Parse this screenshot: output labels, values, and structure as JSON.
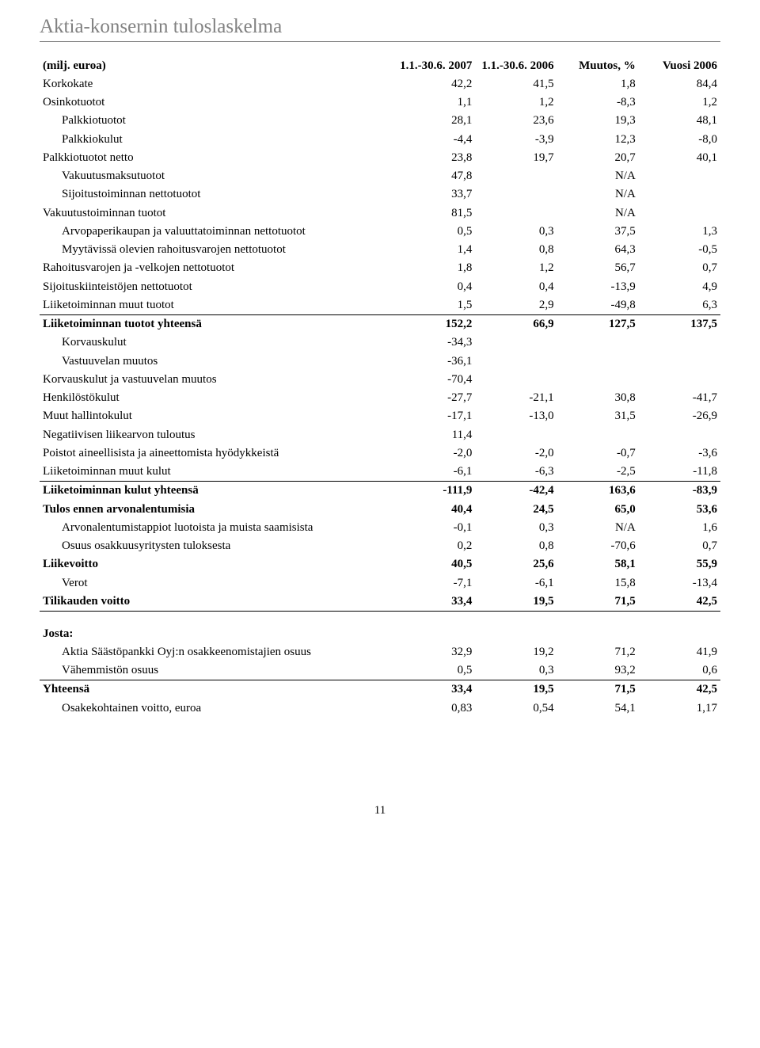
{
  "title": "Aktia-konsernin tuloslaskelma",
  "page_number": "11",
  "header": {
    "label": "(milj. euroa)",
    "col1": "1.1.-30.6. 2007",
    "col2": "1.1.-30.6. 2006",
    "col3": "Muutos, %",
    "col4": "Vuosi 2006"
  },
  "rows": [
    {
      "label": "Korkokate",
      "indent": 0,
      "bold": false,
      "c1": "42,2",
      "c2": "41,5",
      "c3": "1,8",
      "c4": "84,4"
    },
    {
      "label": "Osinkotuotot",
      "indent": 0,
      "bold": false,
      "c1": "1,1",
      "c2": "1,2",
      "c3": "-8,3",
      "c4": "1,2"
    },
    {
      "label": "Palkkiotuotot",
      "indent": 1,
      "bold": false,
      "c1": "28,1",
      "c2": "23,6",
      "c3": "19,3",
      "c4": "48,1"
    },
    {
      "label": "Palkkiokulut",
      "indent": 1,
      "bold": false,
      "c1": "-4,4",
      "c2": "-3,9",
      "c3": "12,3",
      "c4": "-8,0"
    },
    {
      "label": "Palkkiotuotot netto",
      "indent": 0,
      "bold": false,
      "c1": "23,8",
      "c2": "19,7",
      "c3": "20,7",
      "c4": "40,1"
    },
    {
      "label": "Vakuutusmaksutuotot",
      "indent": 1,
      "bold": false,
      "c1": "47,8",
      "c2": "",
      "c3": "N/A",
      "c4": ""
    },
    {
      "label": "Sijoitustoiminnan nettotuotot",
      "indent": 1,
      "bold": false,
      "c1": "33,7",
      "c2": "",
      "c3": "N/A",
      "c4": ""
    },
    {
      "label": "Vakuutustoiminnan tuotot",
      "indent": 0,
      "bold": false,
      "c1": "81,5",
      "c2": "",
      "c3": "N/A",
      "c4": ""
    },
    {
      "label": "Arvopaperikaupan ja valuuttatoiminnan nettotuotot",
      "indent": 1,
      "bold": false,
      "c1": "0,5",
      "c2": "0,3",
      "c3": "37,5",
      "c4": "1,3"
    },
    {
      "label": "Myytävissä olevien rahoitusvarojen nettotuotot",
      "indent": 1,
      "bold": false,
      "c1": "1,4",
      "c2": "0,8",
      "c3": "64,3",
      "c4": "-0,5"
    },
    {
      "label": "Rahoitusvarojen ja -velkojen nettotuotot",
      "indent": 0,
      "bold": false,
      "c1": "1,8",
      "c2": "1,2",
      "c3": "56,7",
      "c4": "0,7"
    },
    {
      "label": "Sijoituskiinteistöjen nettotuotot",
      "indent": 0,
      "bold": false,
      "c1": "0,4",
      "c2": "0,4",
      "c3": "-13,9",
      "c4": "4,9"
    },
    {
      "label": "Liiketoiminnan muut tuotot",
      "indent": 0,
      "bold": false,
      "c1": "1,5",
      "c2": "2,9",
      "c3": "-49,8",
      "c4": "6,3"
    },
    {
      "label": "Liiketoiminnan tuotot yhteensä",
      "indent": 0,
      "bold": true,
      "c1": "152,2",
      "c2": "66,9",
      "c3": "127,5",
      "c4": "137,5"
    },
    {
      "label": "Korvauskulut",
      "indent": 1,
      "bold": false,
      "c1": "-34,3",
      "c2": "",
      "c3": "",
      "c4": ""
    },
    {
      "label": "Vastuuvelan muutos",
      "indent": 1,
      "bold": false,
      "c1": "-36,1",
      "c2": "",
      "c3": "",
      "c4": ""
    },
    {
      "label": "Korvauskulut ja vastuuvelan muutos",
      "indent": 0,
      "bold": false,
      "c1": "-70,4",
      "c2": "",
      "c3": "",
      "c4": ""
    },
    {
      "label": "Henkilöstökulut",
      "indent": 0,
      "bold": false,
      "c1": "-27,7",
      "c2": "-21,1",
      "c3": "30,8",
      "c4": "-41,7"
    },
    {
      "label": "Muut hallintokulut",
      "indent": 0,
      "bold": false,
      "c1": "-17,1",
      "c2": "-13,0",
      "c3": "31,5",
      "c4": "-26,9"
    },
    {
      "label": "Negatiivisen liikearvon tuloutus",
      "indent": 0,
      "bold": false,
      "c1": "11,4",
      "c2": "",
      "c3": "",
      "c4": ""
    },
    {
      "label": "Poistot aineellisista ja aineettomista hyödykkeistä",
      "indent": 0,
      "bold": false,
      "c1": "-2,0",
      "c2": "-2,0",
      "c3": "-0,7",
      "c4": "-3,6"
    },
    {
      "label": "Liiketoiminnan muut kulut",
      "indent": 0,
      "bold": false,
      "c1": "-6,1",
      "c2": "-6,3",
      "c3": "-2,5",
      "c4": "-11,8"
    },
    {
      "label": "Liiketoiminnan kulut yhteensä",
      "indent": 0,
      "bold": true,
      "c1": "-111,9",
      "c2": "-42,4",
      "c3": "163,6",
      "c4": "-83,9"
    },
    {
      "label": "Tulos ennen arvonalentumisia",
      "indent": 0,
      "bold": true,
      "c1": "40,4",
      "c2": "24,5",
      "c3": "65,0",
      "c4": "53,6"
    },
    {
      "label": "Arvonalentumistappiot luotoista ja muista saamisista",
      "indent": 1,
      "bold": false,
      "c1": "-0,1",
      "c2": "0,3",
      "c3": "N/A",
      "c4": "1,6"
    },
    {
      "label": "Osuus osakkuusyritysten tuloksesta",
      "indent": 1,
      "bold": false,
      "c1": "0,2",
      "c2": "0,8",
      "c3": "-70,6",
      "c4": "0,7"
    },
    {
      "label": "Liikevoitto",
      "indent": 0,
      "bold": true,
      "c1": "40,5",
      "c2": "25,6",
      "c3": "58,1",
      "c4": "55,9"
    },
    {
      "label": "Verot",
      "indent": 1,
      "bold": false,
      "c1": "-7,1",
      "c2": "-6,1",
      "c3": "15,8",
      "c4": "-13,4"
    },
    {
      "label": "Tilikauden voitto",
      "indent": 0,
      "bold": true,
      "c1": "33,4",
      "c2": "19,5",
      "c3": "71,5",
      "c4": "42,5"
    }
  ],
  "josta_header": "Josta:",
  "josta_rows": [
    {
      "label": "Aktia Säästöpankki Oyj:n osakkeenomistajien osuus",
      "indent": 1,
      "bold": false,
      "c1": "32,9",
      "c2": "19,2",
      "c3": "71,2",
      "c4": "41,9"
    },
    {
      "label": "Vähemmistön osuus",
      "indent": 1,
      "bold": false,
      "c1": "0,5",
      "c2": "0,3",
      "c3": "93,2",
      "c4": "0,6"
    },
    {
      "label": "Yhteensä",
      "indent": 0,
      "bold": true,
      "c1": "33,4",
      "c2": "19,5",
      "c3": "71,5",
      "c4": "42,5"
    },
    {
      "label": "Osakekohtainen voitto, euroa",
      "indent": 1,
      "bold": false,
      "c1": "0,83",
      "c2": "0,54",
      "c3": "54,1",
      "c4": "1,17"
    }
  ]
}
